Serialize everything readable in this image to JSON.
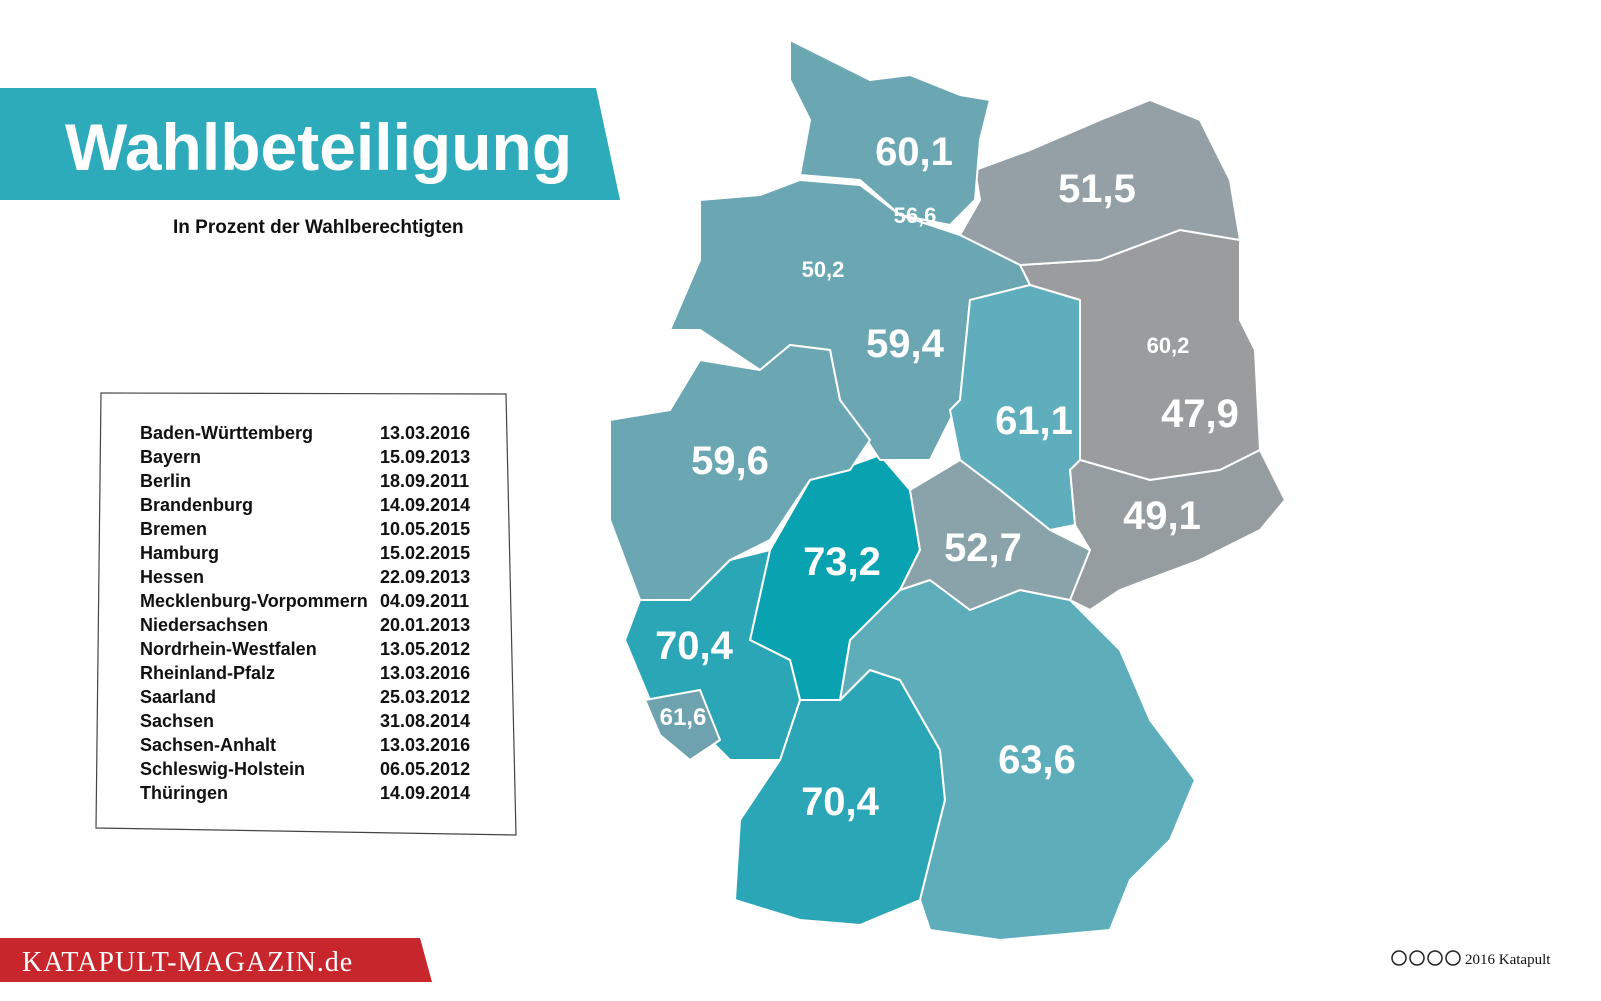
{
  "header": {
    "title": "Wahlbeteiligung",
    "subtitle": "In Prozent der Wahlberechtigten"
  },
  "table": {
    "rows": [
      [
        "Baden-Württemberg",
        "13.03.2016"
      ],
      [
        "Bayern",
        "15.09.2013"
      ],
      [
        "Berlin",
        "18.09.2011"
      ],
      [
        "Brandenburg",
        "14.09.2014"
      ],
      [
        "Bremen",
        "10.05.2015"
      ],
      [
        "Hamburg",
        "15.02.2015"
      ],
      [
        "Hessen",
        "22.09.2013"
      ],
      [
        "Mecklenburg-Vorpommern",
        "04.09.2011"
      ],
      [
        "Niedersachsen",
        "20.01.2013"
      ],
      [
        "Nordrhein-Westfalen",
        "13.05.2012"
      ],
      [
        "Rheinland-Pfalz",
        "13.03.2016"
      ],
      [
        "Saarland",
        "25.03.2012"
      ],
      [
        "Sachsen",
        "31.08.2014"
      ],
      [
        "Sachsen-Anhalt",
        "13.03.2016"
      ],
      [
        "Schleswig-Holstein",
        "06.05.2012"
      ],
      [
        "Thüringen",
        "14.09.2014"
      ]
    ]
  },
  "map": {
    "regions": [
      {
        "label": "70,4",
        "color": "#2aa6b6"
      },
      {
        "label": "63,6",
        "color": "#5eadbb"
      },
      {
        "label": "60,2",
        "color": "#7fbfcc"
      },
      {
        "label": "47,9",
        "color": "#9a9c9e"
      },
      {
        "label": "50,2",
        "color": "#6ba9b5"
      },
      {
        "label": "56,6",
        "color": "#6aa7b3"
      },
      {
        "label": "73,2",
        "color": "#08a2b1"
      },
      {
        "label": "51,5",
        "color": "#94a0a5"
      },
      {
        "label": "59,4",
        "color": "#6aa7b3"
      },
      {
        "label": "59,6",
        "color": "#6aa7b3"
      },
      {
        "label": "70,4",
        "color": "#2aa6b6"
      },
      {
        "label": "61,6",
        "color": "#6ea2ae"
      },
      {
        "label": "49,1",
        "color": "#959da1"
      },
      {
        "label": "61,1",
        "color": "#5faebd"
      },
      {
        "label": "60,1",
        "color": "#6aa7b3"
      },
      {
        "label": "52,7",
        "color": "#8aa3aa"
      }
    ]
  },
  "footer": {
    "brand": "KATAPULT-MAGAZIN.de",
    "credit": "2016 Katapult"
  }
}
